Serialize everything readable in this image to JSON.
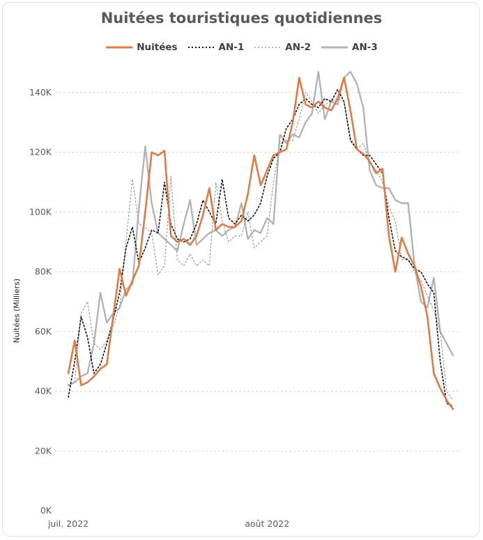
{
  "chart_data": {
    "type": "line",
    "title": "Nuitées touristiques quotidiennes",
    "ylabel": "Nuitées (Milliers)",
    "xlabel": "",
    "ylim": [
      0,
      150000
    ],
    "y_ticks": [
      0,
      20000,
      40000,
      60000,
      80000,
      100000,
      120000,
      140000
    ],
    "y_tick_labels": [
      "0K",
      "20K",
      "40K",
      "60K",
      "80K",
      "100K",
      "120K",
      "140K"
    ],
    "x_start": "2022-07-01",
    "x_ticks": [
      {
        "date": "2022-07-01",
        "label": "juil. 2022"
      },
      {
        "date": "2022-08-01",
        "label": "août 2022"
      }
    ],
    "grid": "horizontal-dotted",
    "legend_position": "top-center",
    "series": [
      {
        "name": "Nuitées",
        "color": "#E07A45",
        "style": "solid",
        "values": [
          46000,
          57000,
          42000,
          43000,
          45000,
          47500,
          49000,
          65000,
          81000,
          72000,
          77000,
          82000,
          100000,
          120000,
          119000,
          120500,
          92000,
          90000,
          91000,
          89000,
          92000,
          99000,
          108000,
          94000,
          96000,
          95000,
          95000,
          97000,
          106000,
          119000,
          109000,
          114000,
          119000,
          120000,
          121000,
          130000,
          145000,
          136000,
          135000,
          137000,
          135000,
          134000,
          138000,
          145000,
          134000,
          121000,
          119500,
          117000,
          113000,
          114500,
          92000,
          80000,
          91500,
          86000,
          82000,
          75000,
          65000,
          46000,
          41000,
          37000,
          34000
        ]
      },
      {
        "name": "AN-1",
        "color": "#111111",
        "style": "dotted",
        "values": [
          38000,
          50000,
          65000,
          58000,
          46000,
          49000,
          56000,
          64000,
          73000,
          88000,
          95000,
          83000,
          88000,
          94000,
          93000,
          110000,
          96000,
          91000,
          90000,
          91000,
          96000,
          104000,
          100000,
          96000,
          111000,
          98000,
          96000,
          99000,
          97000,
          99000,
          103000,
          112000,
          118000,
          120000,
          128000,
          131000,
          136000,
          138000,
          136000,
          135000,
          138000,
          137000,
          141000,
          137000,
          124000,
          121000,
          119000,
          119000,
          116000,
          113000,
          98000,
          87000,
          85000,
          84000,
          81000,
          80000,
          76000,
          73000,
          50000,
          36000,
          35000
        ]
      },
      {
        "name": "AN-2",
        "color": "#9A9A9A",
        "style": "dotted",
        "values": [
          42000,
          43000,
          66000,
          70000,
          56000,
          54000,
          57000,
          62000,
          68000,
          90000,
          111000,
          96000,
          95000,
          93000,
          79000,
          82000,
          112000,
          84000,
          82000,
          86000,
          82000,
          84000,
          82000,
          110000,
          97000,
          90000,
          92000,
          92000,
          100000,
          88000,
          90000,
          92000,
          110000,
          123000,
          124000,
          124000,
          131000,
          140000,
          137000,
          133000,
          136000,
          137000,
          138000,
          137000,
          125000,
          121000,
          123000,
          117000,
          114000,
          110000,
          102000,
          97000,
          84000,
          84000,
          80000,
          77000,
          72000,
          67000,
          60000,
          40000,
          37000
        ]
      },
      {
        "name": "AN-3",
        "color": "#B3B3B3",
        "style": "solid",
        "values": [
          42000,
          43000,
          45000,
          46000,
          56000,
          73000,
          63000,
          66000,
          68000,
          74000,
          76000,
          101000,
          122000,
          103000,
          93000,
          91000,
          89000,
          87000,
          96000,
          104000,
          89000,
          91000,
          93000,
          94000,
          92000,
          94000,
          95000,
          103000,
          91000,
          94000,
          93000,
          98000,
          96000,
          126000,
          123000,
          126000,
          125000,
          130000,
          133000,
          147000,
          131000,
          137000,
          136000,
          145000,
          147000,
          143000,
          135000,
          114000,
          109000,
          108000,
          108000,
          104000,
          103000,
          103000,
          82000,
          70000,
          68000,
          78000,
          60000,
          56000,
          52000
        ]
      }
    ]
  }
}
